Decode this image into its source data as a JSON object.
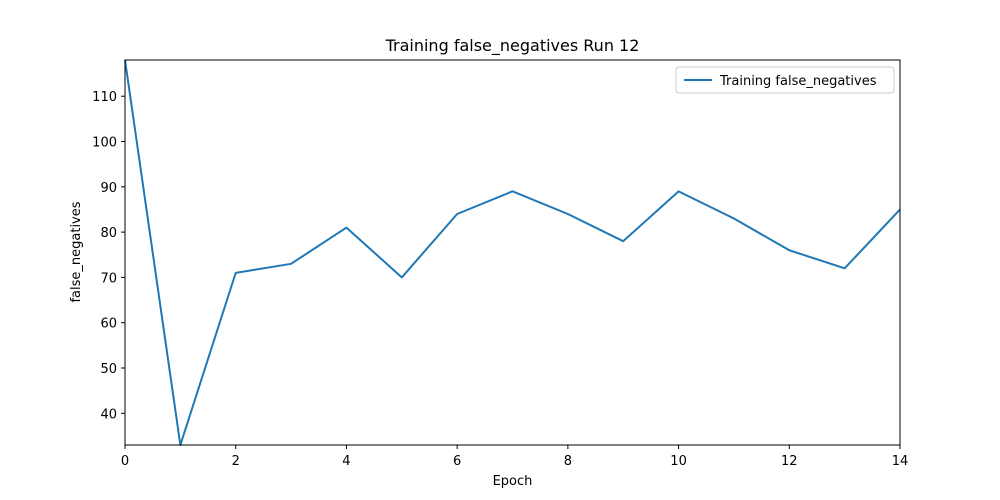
{
  "chart_data": {
    "type": "line",
    "title": "Training false_negatives Run 12",
    "xlabel": "Epoch",
    "ylabel": "false_negatives",
    "xlim": [
      0,
      14
    ],
    "ylim": [
      33,
      118
    ],
    "x_ticks": [
      0,
      2,
      4,
      6,
      8,
      10,
      12,
      14
    ],
    "y_ticks": [
      40,
      50,
      60,
      70,
      80,
      90,
      100,
      110
    ],
    "grid": false,
    "legend_position": "top-right",
    "series": [
      {
        "name": "Training false_negatives",
        "color": "#1f77b4",
        "x": [
          0,
          1,
          2,
          3,
          4,
          5,
          6,
          7,
          8,
          9,
          10,
          11,
          12,
          13,
          14
        ],
        "y": [
          118,
          33,
          71,
          73,
          81,
          70,
          84,
          89,
          84,
          78,
          89,
          83,
          76,
          72,
          85
        ]
      }
    ]
  }
}
